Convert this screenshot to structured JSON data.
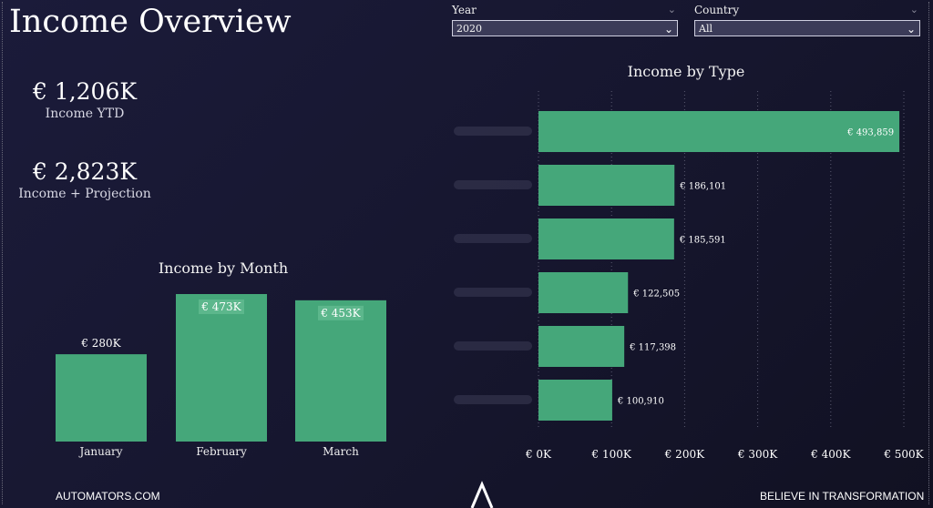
{
  "header": {
    "title": "Income Overview"
  },
  "kpis": [
    {
      "value": "€ 1,206K",
      "label": "Income YTD"
    },
    {
      "value": "€ 2,823K",
      "label": "Income + Projection"
    }
  ],
  "filters": {
    "year": {
      "label": "Year",
      "value": "2020"
    },
    "country": {
      "label": "Country",
      "value": "All"
    }
  },
  "chart_data": [
    {
      "type": "bar",
      "title": "Income by Month",
      "categories": [
        "January",
        "February",
        "March"
      ],
      "values": [
        280,
        473,
        453
      ],
      "data_labels": [
        "€ 280K",
        "€ 473K",
        "€ 453K"
      ],
      "unit": "K",
      "grid": false,
      "color": "#45a77a"
    },
    {
      "type": "bar",
      "orientation": "horizontal",
      "title": "Income by Type",
      "categories": [
        "",
        "",
        "",
        "",
        "",
        ""
      ],
      "values": [
        493859,
        186101,
        185591,
        122505,
        117398,
        100910
      ],
      "data_labels": [
        "€ 493,859",
        "€ 186,101",
        "€ 185,591",
        "€ 122,505",
        "€ 117,398",
        "€ 100,910"
      ],
      "xlim": [
        0,
        500000
      ],
      "x_ticks": [
        "€ 0K",
        "€ 100K",
        "€ 200K",
        "€ 300K",
        "€ 400K",
        "€ 500K"
      ],
      "grid": true,
      "color": "#45a77a"
    }
  ],
  "footer": {
    "left": "AUTOMATORS.COM",
    "right": "BELIEVE IN TRANSFORMATION"
  },
  "colors": {
    "accent": "#45a77a",
    "background": "#1b1b3a"
  }
}
